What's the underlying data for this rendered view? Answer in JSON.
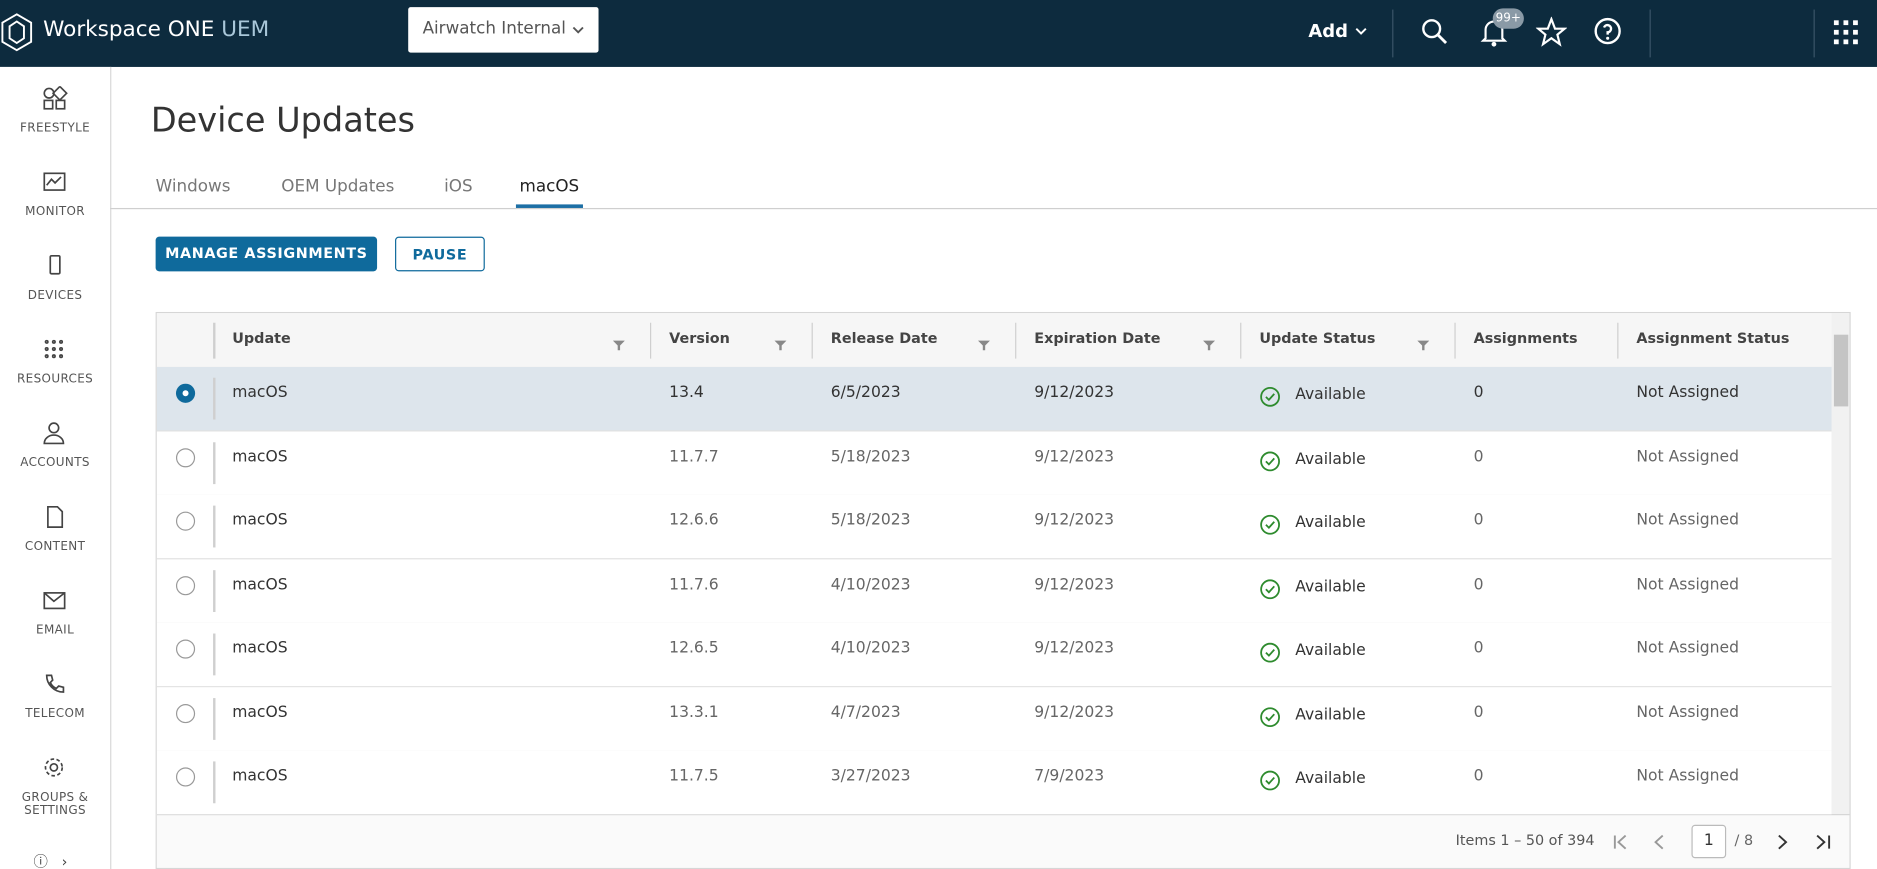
{
  "header": {
    "brand": "Workspace ONE",
    "brand_suffix": "UEM",
    "organization": "Airwatch Internal",
    "add": "Add",
    "notifications": "99+"
  },
  "sidebar": [
    "FREESTYLE",
    "MONITOR",
    "DEVICES",
    "RESOURCES",
    "ACCOUNTS",
    "CONTENT",
    "EMAIL",
    "TELECOM",
    "GROUPS & SETTINGS"
  ],
  "page": {
    "title": "Device Updates",
    "tabs": [
      "Windows",
      "OEM Updates",
      "iOS",
      "macOS"
    ],
    "active_tab": 3,
    "buttons": [
      "MANAGE ASSIGNMENTS",
      "PAUSE"
    ]
  },
  "table": {
    "columns": [
      "Update",
      "Version",
      "Release Date",
      "Expiration Date",
      "Update Status",
      "Assignments",
      "Assignment Status"
    ],
    "rows": [
      [
        "macOS",
        "13.4",
        "6/5/2023",
        "9/12/2023",
        "Available",
        "0",
        "Not Assigned"
      ],
      [
        "macOS",
        "11.7.7",
        "5/18/2023",
        "9/12/2023",
        "Available",
        "0",
        "Not Assigned"
      ],
      [
        "macOS",
        "12.6.6",
        "5/18/2023",
        "9/12/2023",
        "Available",
        "0",
        "Not Assigned"
      ],
      [
        "macOS",
        "11.7.6",
        "4/10/2023",
        "9/12/2023",
        "Available",
        "0",
        "Not Assigned"
      ],
      [
        "macOS",
        "12.6.5",
        "4/10/2023",
        "9/12/2023",
        "Available",
        "0",
        "Not Assigned"
      ],
      [
        "macOS",
        "13.3.1",
        "4/7/2023",
        "9/12/2023",
        "Available",
        "0",
        "Not Assigned"
      ],
      [
        "macOS",
        "11.7.5",
        "3/27/2023",
        "7/9/2023",
        "Available",
        "0",
        "Not Assigned"
      ]
    ],
    "selected_row": 0
  },
  "pagination": {
    "items": "Items 1 – 50 of 394",
    "page": "1",
    "of": "/ 8"
  }
}
